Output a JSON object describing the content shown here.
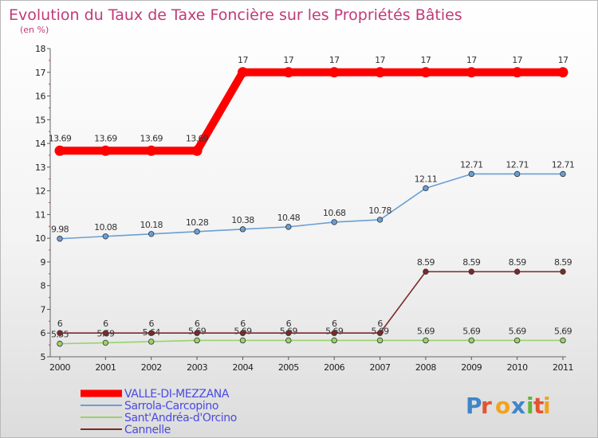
{
  "chart_data": {
    "type": "line",
    "title": "Evolution du Taux de Taxe Foncière sur les Propriétés Bâties",
    "subtitle": "(en %)",
    "x": [
      "2000",
      "2001",
      "2002",
      "2003",
      "2004",
      "2005",
      "2006",
      "2007",
      "2008",
      "2009",
      "2010",
      "2011"
    ],
    "ylim": [
      5,
      18
    ],
    "yticks": [
      5,
      6,
      7,
      8,
      9,
      10,
      11,
      12,
      13,
      14,
      15,
      16,
      17,
      18
    ],
    "series": [
      {
        "name": "VALLE-DI-MEZZANA",
        "color": "#ff0000",
        "values": [
          13.69,
          13.69,
          13.69,
          13.69,
          17,
          17,
          17,
          17,
          17,
          17,
          17,
          17
        ],
        "labels": [
          "13.69",
          "13.69",
          "13.69",
          "13.69",
          "17",
          "17",
          "17",
          "17",
          "17",
          "17",
          "17",
          "17"
        ]
      },
      {
        "name": "Sarrola-Carcopino",
        "color": "#6a9fd4",
        "values": [
          9.98,
          10.08,
          10.18,
          10.28,
          10.38,
          10.48,
          10.68,
          10.78,
          12.11,
          12.71,
          12.71,
          12.71
        ],
        "labels": [
          "9.98",
          "10.08",
          "10.18",
          "10.28",
          "10.38",
          "10.48",
          "10.68",
          "10.78",
          "12.11",
          "12.71",
          "12.71",
          "12.71"
        ]
      },
      {
        "name": "Sant'Andréa-d'Orcino",
        "color": "#99d36a",
        "values": [
          5.55,
          5.59,
          5.64,
          5.69,
          5.69,
          5.69,
          5.69,
          5.69,
          5.69,
          5.69,
          5.69,
          5.69
        ],
        "labels": [
          "5.55",
          "5.59",
          "5.64",
          "5.69",
          "5.69",
          "5.69",
          "5.69",
          "5.69",
          "5.69",
          "5.69",
          "5.69",
          "5.69"
        ]
      },
      {
        "name": "Cannelle",
        "color": "#7b2a2a",
        "values": [
          6,
          6,
          6,
          6,
          6,
          6,
          6,
          6,
          8.59,
          8.59,
          8.59,
          8.59
        ],
        "labels": [
          "6",
          "6",
          "6",
          "6",
          "6",
          "6",
          "6",
          "6",
          "8.59",
          "8.59",
          "8.59",
          "8.59"
        ]
      }
    ],
    "legend_position": "bottom-left",
    "grid": false
  },
  "logo": {
    "text": "Proxiti",
    "letters": [
      "P",
      "r",
      "o",
      "x",
      "i",
      "t",
      "i"
    ],
    "colors": [
      "#3f86c8",
      "#e2542f",
      "#f2a21e",
      "#3f86c8",
      "#63b33a",
      "#e2542f",
      "#f2a21e"
    ]
  }
}
